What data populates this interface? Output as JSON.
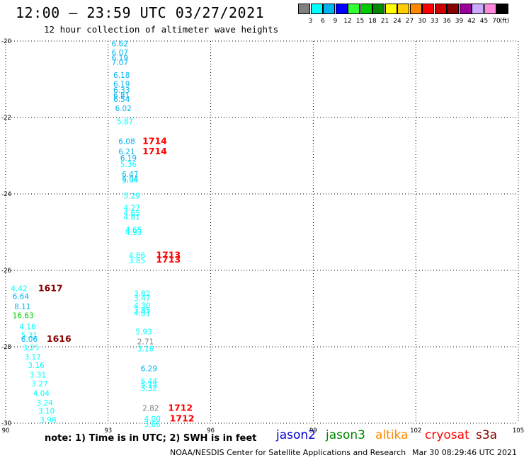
{
  "header": {
    "title": "12:00 – 23:59 UTC 03/27/2021",
    "subtitle": "12 hour collection of altimeter wave heights"
  },
  "legend": {
    "unit": "(ft)",
    "bins": [
      {
        "label": "3",
        "color": "#808080"
      },
      {
        "label": "6",
        "color": "#00ffff"
      },
      {
        "label": "9",
        "color": "#00b4f0"
      },
      {
        "label": "12",
        "color": "#0000ff"
      },
      {
        "label": "15",
        "color": "#33ff33"
      },
      {
        "label": "18",
        "color": "#00cc00"
      },
      {
        "label": "21",
        "color": "#008800"
      },
      {
        "label": "24",
        "color": "#ffff00"
      },
      {
        "label": "27",
        "color": "#ffcc00"
      },
      {
        "label": "30",
        "color": "#ff8800"
      },
      {
        "label": "33",
        "color": "#ff0000"
      },
      {
        "label": "36",
        "color": "#cc0000"
      },
      {
        "label": "39",
        "color": "#880000"
      },
      {
        "label": "42",
        "color": "#990099"
      },
      {
        "label": "45",
        "color": "#ccaaff"
      },
      {
        "label": "70",
        "color": "#ff88dd"
      },
      {
        "label": "",
        "color": "#000000"
      }
    ]
  },
  "footer": {
    "note": "note: 1) Time is in UTC; 2) SWH is in feet",
    "credit": "NOAA/NESDIS Center for Satellite Applications and Research",
    "timestamp": "Mar 30 08:29:46 UTC 2021"
  },
  "satellites": [
    {
      "name": "jason2",
      "color": "#0000cc"
    },
    {
      "name": "jason3",
      "color": "#008800"
    },
    {
      "name": "altika",
      "color": "#ff8800"
    },
    {
      "name": "cryosat",
      "color": "#ff0000"
    },
    {
      "name": "s3a",
      "color": "#880000"
    }
  ],
  "chart_data": {
    "type": "scatter",
    "xlim": [
      90,
      105
    ],
    "ylim": [
      -30,
      -20
    ],
    "xticks": [
      90,
      93,
      96,
      99,
      102,
      105
    ],
    "yticks": [
      -20,
      -22,
      -24,
      -26,
      -28,
      -30
    ],
    "grid": true,
    "swh_points": [
      {
        "lon": 93.1,
        "lat": -20.05,
        "text": "6.62",
        "color": "#00b4f0"
      },
      {
        "lon": 93.1,
        "lat": -20.28,
        "text": "6.07",
        "color": "#00b4f0"
      },
      {
        "lon": 93.1,
        "lat": -20.42,
        "text": "6.19",
        "color": "#00b4f0"
      },
      {
        "lon": 93.1,
        "lat": -20.54,
        "text": "7.07",
        "color": "#00b4f0"
      },
      {
        "lon": 93.15,
        "lat": -20.87,
        "text": "6.18",
        "color": "#00b4f0"
      },
      {
        "lon": 93.15,
        "lat": -21.1,
        "text": "6.19",
        "color": "#00b4f0"
      },
      {
        "lon": 93.15,
        "lat": -21.26,
        "text": "6.33",
        "color": "#00b4f0"
      },
      {
        "lon": 93.15,
        "lat": -21.4,
        "text": "6.81",
        "color": "#00b4f0"
      },
      {
        "lon": 93.15,
        "lat": -21.5,
        "text": "6.54",
        "color": "#00b4f0"
      },
      {
        "lon": 93.2,
        "lat": -21.74,
        "text": "6.02",
        "color": "#00b4f0"
      },
      {
        "lon": 93.25,
        "lat": -22.08,
        "text": "5.87",
        "color": "#00ffff"
      },
      {
        "lon": 93.3,
        "lat": -22.6,
        "text": "6.08",
        "color": "#00b4f0"
      },
      {
        "lon": 93.3,
        "lat": -22.87,
        "text": "6.21",
        "color": "#00b4f0"
      },
      {
        "lon": 93.35,
        "lat": -23.04,
        "text": "6.19",
        "color": "#00b4f0"
      },
      {
        "lon": 93.35,
        "lat": -23.2,
        "text": "5.36",
        "color": "#00ffff"
      },
      {
        "lon": 93.4,
        "lat": -23.46,
        "text": "6.47",
        "color": "#00b4f0"
      },
      {
        "lon": 93.4,
        "lat": -23.58,
        "text": "6.04",
        "color": "#00b4f0"
      },
      {
        "lon": 93.4,
        "lat": -23.62,
        "text": "5.94",
        "color": "#00ffff"
      },
      {
        "lon": 93.45,
        "lat": -24.03,
        "text": "5.29",
        "color": "#00ffff"
      },
      {
        "lon": 93.45,
        "lat": -24.34,
        "text": "4.27",
        "color": "#00ffff"
      },
      {
        "lon": 93.45,
        "lat": -24.48,
        "text": "4.65",
        "color": "#00ffff"
      },
      {
        "lon": 93.45,
        "lat": -24.58,
        "text": "4.81",
        "color": "#00ffff"
      },
      {
        "lon": 93.5,
        "lat": -24.92,
        "text": "4.65",
        "color": "#00ffff"
      },
      {
        "lon": 93.5,
        "lat": -24.98,
        "text": "4.93",
        "color": "#00ffff"
      },
      {
        "lon": 93.6,
        "lat": -25.58,
        "text": "4.86",
        "color": "#00ffff"
      },
      {
        "lon": 93.6,
        "lat": -25.72,
        "text": "3.85",
        "color": "#00ffff"
      },
      {
        "lon": 90.15,
        "lat": -26.45,
        "text": "4.42",
        "color": "#00ffff"
      },
      {
        "lon": 90.2,
        "lat": -26.66,
        "text": "6.64",
        "color": "#00b4f0"
      },
      {
        "lon": 90.25,
        "lat": -26.93,
        "text": "8.11",
        "color": "#00b4f0"
      },
      {
        "lon": 90.2,
        "lat": -27.16,
        "text": "16.63",
        "color": "#00cc00"
      },
      {
        "lon": 90.4,
        "lat": -27.45,
        "text": "4.16",
        "color": "#00ffff"
      },
      {
        "lon": 90.45,
        "lat": -27.68,
        "text": "5.31",
        "color": "#00ffff"
      },
      {
        "lon": 90.45,
        "lat": -27.78,
        "text": "6.06",
        "color": "#00b4f0"
      },
      {
        "lon": 90.5,
        "lat": -28.0,
        "text": "3.25",
        "color": "#00ffff"
      },
      {
        "lon": 90.55,
        "lat": -28.24,
        "text": "3.17",
        "color": "#00ffff"
      },
      {
        "lon": 90.65,
        "lat": -28.46,
        "text": "3.16",
        "color": "#00ffff"
      },
      {
        "lon": 90.7,
        "lat": -28.71,
        "text": "3.31",
        "color": "#00ffff"
      },
      {
        "lon": 90.75,
        "lat": -28.94,
        "text": "3.27",
        "color": "#00ffff"
      },
      {
        "lon": 90.8,
        "lat": -29.19,
        "text": "4.04",
        "color": "#00ffff"
      },
      {
        "lon": 90.9,
        "lat": -29.44,
        "text": "3.24",
        "color": "#00ffff"
      },
      {
        "lon": 90.95,
        "lat": -29.66,
        "text": "3.10",
        "color": "#00ffff"
      },
      {
        "lon": 91.0,
        "lat": -29.89,
        "text": "3.98",
        "color": "#00ffff"
      },
      {
        "lon": 93.75,
        "lat": -26.58,
        "text": "3.82",
        "color": "#00ffff"
      },
      {
        "lon": 93.75,
        "lat": -26.7,
        "text": "3.47",
        "color": "#00ffff"
      },
      {
        "lon": 93.75,
        "lat": -26.9,
        "text": "4.30",
        "color": "#00ffff"
      },
      {
        "lon": 93.75,
        "lat": -27.02,
        "text": "3.85",
        "color": "#00ffff"
      },
      {
        "lon": 93.75,
        "lat": -27.1,
        "text": "4.01",
        "color": "#00ffff"
      },
      {
        "lon": 93.8,
        "lat": -27.58,
        "text": "5.93",
        "color": "#00ffff"
      },
      {
        "lon": 93.85,
        "lat": -27.84,
        "text": "2.71",
        "color": "#808080"
      },
      {
        "lon": 93.85,
        "lat": -28.03,
        "text": "3.16",
        "color": "#00ffff"
      },
      {
        "lon": 93.95,
        "lat": -28.55,
        "text": "6.29",
        "color": "#00b4f0"
      },
      {
        "lon": 93.95,
        "lat": -28.88,
        "text": "5.44",
        "color": "#00ffff"
      },
      {
        "lon": 93.95,
        "lat": -28.97,
        "text": "5.15",
        "color": "#00ffff"
      },
      {
        "lon": 93.95,
        "lat": -29.06,
        "text": "3.32",
        "color": "#00ffff"
      },
      {
        "lon": 94.0,
        "lat": -29.58,
        "text": "2.82",
        "color": "#808080"
      },
      {
        "lon": 94.05,
        "lat": -29.86,
        "text": "4.00",
        "color": "#00ffff"
      },
      {
        "lon": 94.05,
        "lat": -30.0,
        "text": "3.66",
        "color": "#00ffff"
      }
    ],
    "time_labels": [
      {
        "lon": 94.0,
        "lat": -22.6,
        "text": "1714",
        "color": "#ff0000"
      },
      {
        "lon": 94.0,
        "lat": -22.87,
        "text": "1714",
        "color": "#ff0000"
      },
      {
        "lon": 94.4,
        "lat": -25.58,
        "text": "1713",
        "color": "#ff0000"
      },
      {
        "lon": 94.4,
        "lat": -25.7,
        "text": "1713",
        "color": "#ff0000"
      },
      {
        "lon": 90.95,
        "lat": -26.45,
        "text": "1617",
        "color": "#880000"
      },
      {
        "lon": 91.2,
        "lat": -27.78,
        "text": "1616",
        "color": "#880000"
      },
      {
        "lon": 94.75,
        "lat": -29.58,
        "text": "1712",
        "color": "#ff0000"
      },
      {
        "lon": 94.8,
        "lat": -29.86,
        "text": "1712",
        "color": "#ff0000"
      }
    ]
  }
}
